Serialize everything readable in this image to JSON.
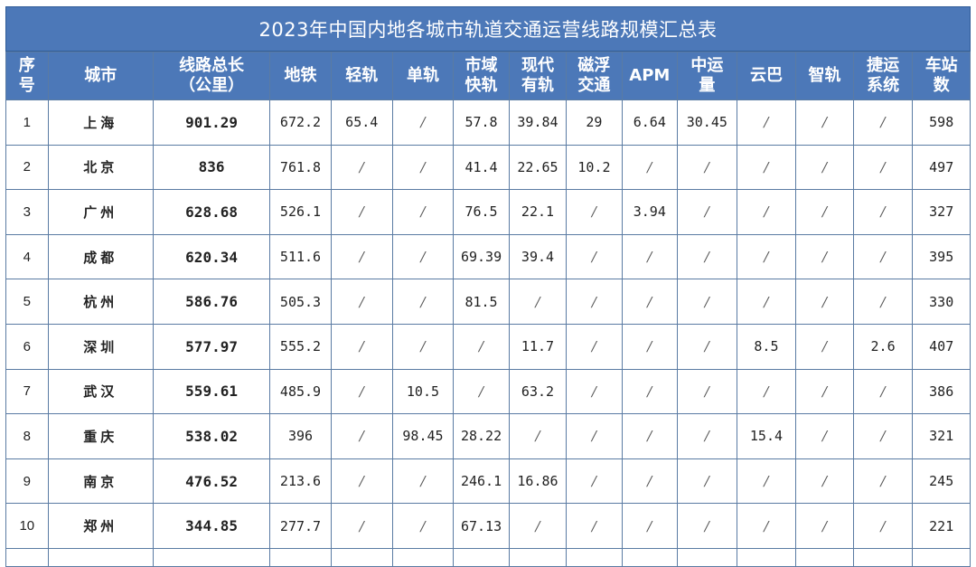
{
  "title": "2023年中国内地各城市轨道交通运营线路规模汇总表",
  "headers": [
    {
      "key": "seq",
      "lines": [
        "序",
        "号"
      ]
    },
    {
      "key": "city",
      "lines": [
        "城市"
      ]
    },
    {
      "key": "total",
      "lines": [
        "线路总长",
        "（公里）"
      ]
    },
    {
      "key": "metro",
      "lines": [
        "地铁"
      ]
    },
    {
      "key": "light_rail",
      "lines": [
        "轻轨"
      ]
    },
    {
      "key": "monorail",
      "lines": [
        "单轨"
      ]
    },
    {
      "key": "suburban",
      "lines": [
        "市域",
        "快轨"
      ]
    },
    {
      "key": "tram",
      "lines": [
        "现代",
        "有轨"
      ]
    },
    {
      "key": "maglev",
      "lines": [
        "磁浮",
        "交通"
      ]
    },
    {
      "key": "apm",
      "lines": [
        "APM"
      ]
    },
    {
      "key": "medium",
      "lines": [
        "中运",
        "量"
      ]
    },
    {
      "key": "skyrail",
      "lines": [
        "云巴"
      ]
    },
    {
      "key": "smart_rail",
      "lines": [
        "智轨"
      ]
    },
    {
      "key": "rapid",
      "lines": [
        "捷运",
        "系统"
      ]
    },
    {
      "key": "stations",
      "lines": [
        "车站",
        "数"
      ]
    }
  ],
  "rows": [
    [
      "1",
      "上海",
      "901.29",
      "672.2",
      "65.4",
      "/",
      "57.8",
      "39.84",
      "29",
      "6.64",
      "30.45",
      "/",
      "/",
      "/",
      "598"
    ],
    [
      "2",
      "北京",
      "836",
      "761.8",
      "/",
      "/",
      "41.4",
      "22.65",
      "10.2",
      "/",
      "/",
      "/",
      "/",
      "/",
      "497"
    ],
    [
      "3",
      "广州",
      "628.68",
      "526.1",
      "/",
      "/",
      "76.5",
      "22.1",
      "/",
      "3.94",
      "/",
      "/",
      "/",
      "/",
      "327"
    ],
    [
      "4",
      "成都",
      "620.34",
      "511.6",
      "/",
      "/",
      "69.39",
      "39.4",
      "/",
      "/",
      "/",
      "/",
      "/",
      "/",
      "395"
    ],
    [
      "5",
      "杭州",
      "586.76",
      "505.3",
      "/",
      "/",
      "81.5",
      "/",
      "/",
      "/",
      "/",
      "/",
      "/",
      "/",
      "330"
    ],
    [
      "6",
      "深圳",
      "577.97",
      "555.2",
      "/",
      "/",
      "/",
      "11.7",
      "/",
      "/",
      "/",
      "8.5",
      "/",
      "2.6",
      "407"
    ],
    [
      "7",
      "武汉",
      "559.61",
      "485.9",
      "/",
      "10.5",
      "/",
      "63.2",
      "/",
      "/",
      "/",
      "/",
      "/",
      "/",
      "386"
    ],
    [
      "8",
      "重庆",
      "538.02",
      "396",
      "/",
      "98.45",
      "28.22",
      "/",
      "/",
      "/",
      "/",
      "15.4",
      "/",
      "/",
      "321"
    ],
    [
      "9",
      "南京",
      "476.52",
      "213.6",
      "/",
      "/",
      "246.1",
      "16.86",
      "/",
      "/",
      "/",
      "/",
      "/",
      "/",
      "245"
    ],
    [
      "10",
      "郑州",
      "344.85",
      "277.7",
      "/",
      "/",
      "67.13",
      "/",
      "/",
      "/",
      "/",
      "/",
      "/",
      "/",
      "221"
    ]
  ]
}
